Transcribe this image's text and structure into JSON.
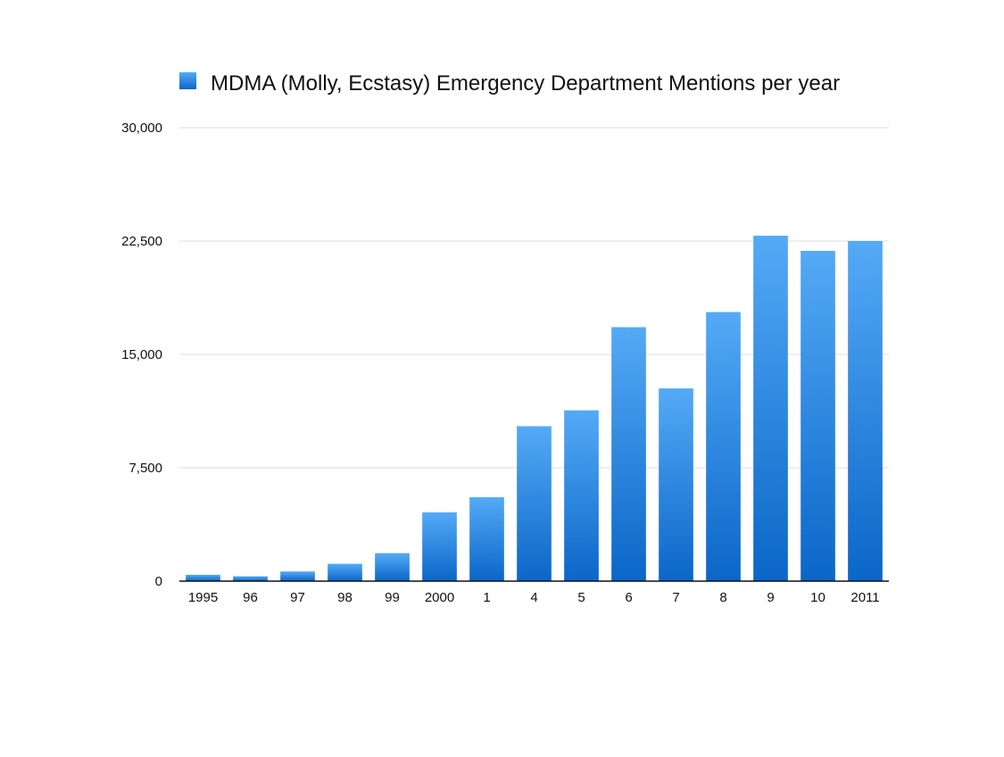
{
  "chart_data": {
    "type": "bar",
    "categories": [
      "1995",
      "96",
      "97",
      "98",
      "99",
      "2000",
      "1",
      "4",
      "5",
      "6",
      "7",
      "8",
      "9",
      "10",
      "2011"
    ],
    "series": [
      {
        "name": "MDMA (Molly, Ecstasy) Emergency Department Mentions per year",
        "values": [
          420,
          320,
          640,
          1150,
          1850,
          4550,
          5550,
          10250,
          11300,
          16800,
          12750,
          17800,
          22850,
          21850,
          22500
        ],
        "color": "#2a86e4"
      }
    ],
    "yticks": [
      "0",
      "7,500",
      "15,000",
      "22,500",
      "30,000"
    ],
    "ylim": [
      0,
      30000
    ],
    "grid": true,
    "legend_position": "top"
  }
}
